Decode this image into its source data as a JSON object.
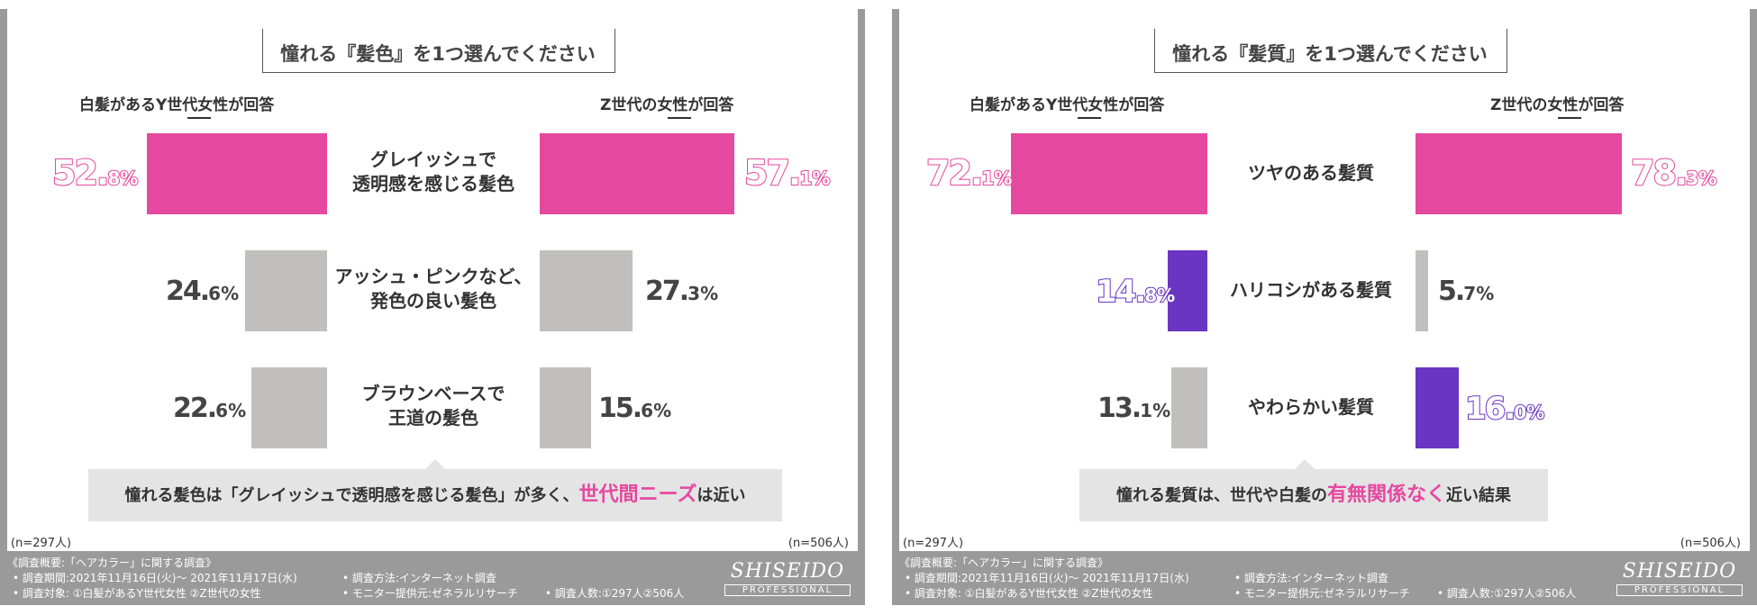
{
  "panels": [
    {
      "question": "憧れる『髪色』を1つ選んでください",
      "group_left": "白髪があるY世代女性が回答",
      "group_right": "Z世代の女性が回答",
      "n_left": "(n=297人)",
      "n_right": "(n=506人)",
      "callout": {
        "pre": "憧れる髪色は「グレイッシュで透明感を感じる髪色」が多く、",
        "highlight": "世代間ニーズ",
        "post": "は近い"
      },
      "rows": [
        {
          "cat_line1": "グレイッシュで",
          "cat_line2": "透明感を感じる髪色",
          "left_int": "52.",
          "left_dec": "8%",
          "right_int": "57.",
          "right_dec": "1%"
        },
        {
          "cat_line1": "アッシュ・ピンクなど、",
          "cat_line2": "発色の良い髪色",
          "left_int": "24.",
          "left_dec": "6%",
          "right_int": "27.",
          "right_dec": "3%"
        },
        {
          "cat_line1": "ブラウンベースで",
          "cat_line2": "王道の髪色",
          "left_int": "22.",
          "left_dec": "6%",
          "right_int": "15.",
          "right_dec": "6%"
        }
      ]
    },
    {
      "question": "憧れる『髪質』を1つ選んでください",
      "group_left": "白髪があるY世代女性が回答",
      "group_right": "Z世代の女性が回答",
      "n_left": "(n=297人)",
      "n_right": "(n=506人)",
      "callout": {
        "pre": "憧れる髪質は、世代や白髪の",
        "highlight": "有無関係なく",
        "post": "近い結果"
      },
      "rows": [
        {
          "cat_line1": "ツヤのある髪質",
          "cat_line2": "",
          "left_int": "72.",
          "left_dec": "1%",
          "right_int": "78.",
          "right_dec": "3%"
        },
        {
          "cat_line1": "ハリコシがある髪質",
          "cat_line2": "",
          "left_int": "14.",
          "left_dec": "8%",
          "right_int": "5.",
          "right_dec": "7%"
        },
        {
          "cat_line1": "やわらかい髪質",
          "cat_line2": "",
          "left_int": "13.",
          "left_dec": "1%",
          "right_int": "16.",
          "right_dec": "0%"
        }
      ]
    }
  ],
  "footer": {
    "line1": "《調査概要:「ヘアカラー」に関する調査》",
    "line2a": "• 調査期間:2021年11月16日(火)～ 2021年11月17日(水)",
    "line2b": "• 調査方法:インターネット調査",
    "line3a": "• 調査対象: ①白髪があるY世代女性 ②Z世代の女性",
    "line3b": "• モニター提供元:ゼネラルリサーチ",
    "line3c": "• 調査人数:①297人②506人",
    "brand": "SHISEIDO",
    "brand_sub": "PROFESSIONAL"
  },
  "colors": {
    "pink": "#e5489f",
    "gray": "#c0bfbe",
    "purple": "#6a35c2"
  },
  "chart_data": [
    {
      "type": "bar",
      "title": "憧れる『髪色』を1つ選んでください",
      "categories": [
        "グレイッシュで透明感を感じる髪色",
        "アッシュ・ピンクなど、発色の良い髪色",
        "ブラウンベースで王道の髪色"
      ],
      "series": [
        {
          "name": "白髪があるY世代女性が回答",
          "values": [
            52.8,
            24.6,
            22.6
          ]
        },
        {
          "name": "Z世代の女性が回答",
          "values": [
            57.1,
            27.3,
            15.6
          ]
        }
      ]
    },
    {
      "type": "bar",
      "title": "憧れる『髪質』を1つ選んでください",
      "categories": [
        "ツヤのある髪質",
        "ハリコシがある髪質",
        "やわらかい髪質"
      ],
      "series": [
        {
          "name": "白髪があるY世代女性が回答",
          "values": [
            72.1,
            14.8,
            13.1
          ]
        },
        {
          "name": "Z世代の女性が回答",
          "values": [
            78.3,
            5.7,
            16.0
          ]
        }
      ]
    }
  ]
}
